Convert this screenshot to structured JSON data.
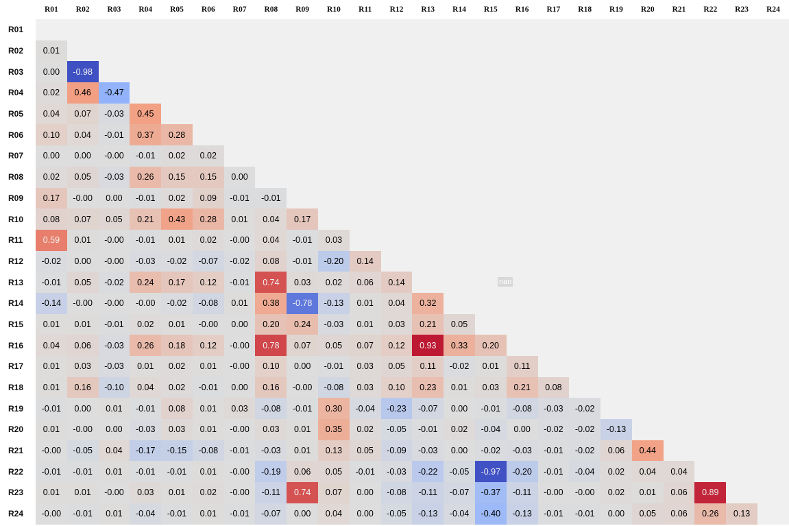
{
  "columns": [
    "R01",
    "R02",
    "R03",
    "R04",
    "R05",
    "R06",
    "R07",
    "R08",
    "R09",
    "R10",
    "R11",
    "R12",
    "R13",
    "R14",
    "R15",
    "R16",
    "R17",
    "R18",
    "R19",
    "R20",
    "R21",
    "R22",
    "R23",
    "R24"
  ],
  "rows": [
    {
      "label": "R01",
      "cells": []
    },
    {
      "label": "R02",
      "cells": [
        "0.01"
      ]
    },
    {
      "label": "R03",
      "cells": [
        "0.00",
        "-0.98"
      ]
    },
    {
      "label": "R04",
      "cells": [
        "0.02",
        "0.46",
        "-0.47"
      ]
    },
    {
      "label": "R05",
      "cells": [
        "0.04",
        "0.07",
        "-0.03",
        "0.45"
      ]
    },
    {
      "label": "R06",
      "cells": [
        "0.10",
        "0.04",
        "-0.01",
        "0.37",
        "0.28"
      ]
    },
    {
      "label": "R07",
      "cells": [
        "0.00",
        "0.00",
        "-0.00",
        "-0.01",
        "0.02",
        "0.02"
      ]
    },
    {
      "label": "R08",
      "cells": [
        "0.02",
        "0.05",
        "-0.03",
        "0.26",
        "0.15",
        "0.15",
        "0.00"
      ]
    },
    {
      "label": "R09",
      "cells": [
        "0.17",
        "-0.00",
        "0.00",
        "-0.01",
        "0.02",
        "0.09",
        "-0.01",
        "-0.01"
      ]
    },
    {
      "label": "R10",
      "cells": [
        "0.08",
        "0.07",
        "0.05",
        "0.21",
        "0.43",
        "0.28",
        "0.01",
        "0.04",
        "0.17"
      ]
    },
    {
      "label": "R11",
      "cells": [
        "0.59",
        "0.01",
        "-0.00",
        "-0.01",
        "0.01",
        "0.02",
        "-0.00",
        "0.04",
        "-0.01",
        "0.03"
      ]
    },
    {
      "label": "R12",
      "cells": [
        "-0.02",
        "0.00",
        "-0.00",
        "-0.03",
        "-0.02",
        "-0.07",
        "-0.02",
        "0.08",
        "-0.01",
        "-0.20",
        "0.14"
      ]
    },
    {
      "label": "R13",
      "cells": [
        "-0.01",
        "0.05",
        "-0.02",
        "0.24",
        "0.17",
        "0.12",
        "-0.01",
        "0.74",
        "0.03",
        "0.02",
        "0.06",
        "0.14"
      ]
    },
    {
      "label": "R14",
      "cells": [
        "-0.14",
        "-0.00",
        "-0.00",
        "-0.00",
        "-0.02",
        "-0.08",
        "0.01",
        "0.38",
        "-0.78",
        "-0.13",
        "0.01",
        "0.04",
        "0.32"
      ]
    },
    {
      "label": "R15",
      "cells": [
        "0.01",
        "0.01",
        "-0.01",
        "0.02",
        "0.01",
        "-0.00",
        "0.00",
        "0.20",
        "0.24",
        "-0.03",
        "0.01",
        "0.03",
        "0.21",
        "0.05"
      ]
    },
    {
      "label": "R16",
      "cells": [
        "0.04",
        "0.06",
        "-0.03",
        "0.26",
        "0.18",
        "0.12",
        "-0.00",
        "0.78",
        "0.07",
        "0.05",
        "0.07",
        "0.12",
        "0.93",
        "0.33",
        "0.20"
      ]
    },
    {
      "label": "R17",
      "cells": [
        "0.01",
        "0.03",
        "-0.03",
        "0.01",
        "0.02",
        "0.01",
        "-0.00",
        "0.10",
        "0.00",
        "-0.01",
        "0.03",
        "0.05",
        "0.11",
        "-0.02",
        "0.01",
        "0.11"
      ]
    },
    {
      "label": "R18",
      "cells": [
        "0.01",
        "0.16",
        "-0.10",
        "0.04",
        "0.02",
        "-0.01",
        "0.00",
        "0.16",
        "-0.00",
        "-0.08",
        "0.03",
        "0.10",
        "0.23",
        "0.01",
        "0.03",
        "0.21",
        "0.08"
      ]
    },
    {
      "label": "R19",
      "cells": [
        "-0.01",
        "0.00",
        "0.01",
        "-0.01",
        "0.08",
        "0.01",
        "0.03",
        "-0.08",
        "-0.01",
        "0.30",
        "-0.04",
        "-0.23",
        "-0.07",
        "0.00",
        "-0.01",
        "-0.08",
        "-0.03",
        "-0.02"
      ]
    },
    {
      "label": "R20",
      "cells": [
        "0.01",
        "-0.00",
        "0.00",
        "-0.03",
        "0.03",
        "0.01",
        "-0.00",
        "0.03",
        "0.01",
        "0.35",
        "0.02",
        "-0.05",
        "-0.01",
        "0.02",
        "-0.04",
        "0.00",
        "-0.02",
        "-0.02",
        "-0.13"
      ]
    },
    {
      "label": "R21",
      "cells": [
        "-0.00",
        "-0.05",
        "0.04",
        "-0.17",
        "-0.15",
        "-0.08",
        "-0.01",
        "-0.03",
        "0.01",
        "0.13",
        "0.05",
        "-0.09",
        "-0.03",
        "0.00",
        "-0.02",
        "-0.03",
        "-0.01",
        "-0.02",
        "0.06",
        "0.44"
      ]
    },
    {
      "label": "R22",
      "cells": [
        "-0.01",
        "-0.01",
        "0.01",
        "-0.01",
        "-0.01",
        "0.01",
        "-0.00",
        "-0.19",
        "0.06",
        "0.05",
        "-0.01",
        "-0.03",
        "-0.22",
        "-0.05",
        "-0.97",
        "-0.20",
        "-0.01",
        "-0.04",
        "0.02",
        "0.04",
        "0.04"
      ]
    },
    {
      "label": "R23",
      "cells": [
        "0.01",
        "0.01",
        "-0.00",
        "0.03",
        "0.01",
        "0.02",
        "-0.00",
        "-0.11",
        "0.74",
        "0.07",
        "0.00",
        "-0.08",
        "-0.11",
        "-0.07",
        "-0.37",
        "-0.11",
        "-0.00",
        "-0.00",
        "0.02",
        "0.01",
        "0.06",
        "0.89"
      ]
    },
    {
      "label": "R24",
      "cells": [
        "-0.00",
        "-0.01",
        "0.01",
        "-0.04",
        "-0.01",
        "0.01",
        "-0.01",
        "-0.07",
        "0.00",
        "0.04",
        "0.00",
        "-0.05",
        "-0.13",
        "-0.04",
        "-0.40",
        "-0.13",
        "-0.01",
        "-0.01",
        "0.00",
        "0.05",
        "0.06",
        "0.26",
        "0.13"
      ]
    }
  ],
  "annotation": "nan"
}
